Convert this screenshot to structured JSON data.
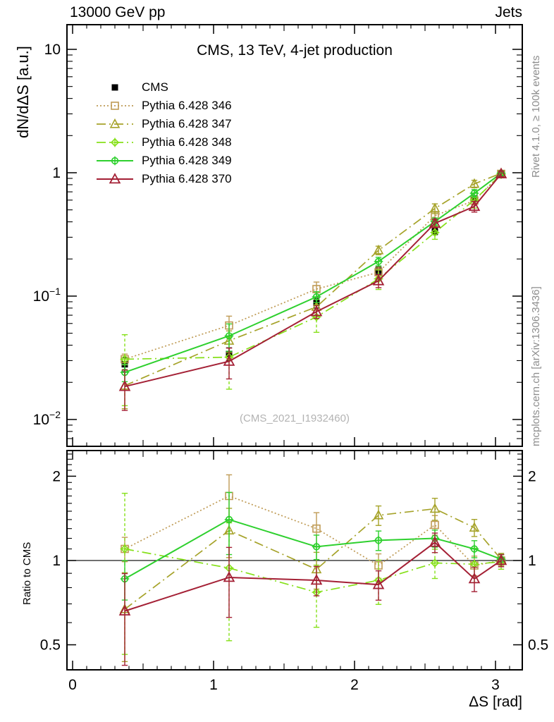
{
  "header": {
    "left": "13000 GeV pp",
    "right": "Jets"
  },
  "title": "CMS, 13 TeV, 4-jet production",
  "watermark": "(CMS_2021_I1932460)",
  "side_notes": {
    "top_right": "Rivet 4.1.0, ≥ 100k events",
    "bottom_right": "mcplots.cern.ch [arXiv:1306.3436]"
  },
  "axes": {
    "main_ylabel": "dN/dΔS [a.u.]",
    "ratio_ylabel": "Ratio to CMS",
    "xlabel": "ΔS [rad]"
  },
  "chart_data": {
    "type": "line",
    "title": "CMS, 13 TeV, 4-jet production",
    "xlabel": "ΔS [rad]",
    "ylabel": "dN/dΔS [a.u.]",
    "ratio_label": "Ratio to CMS",
    "x": [
      0.37,
      1.11,
      1.73,
      2.17,
      2.57,
      2.85,
      3.04
    ],
    "xlim": [
      -0.04,
      3.19
    ],
    "main_ylim": [
      0.00606,
      15.85
    ],
    "ratio_ylim": [
      0.407,
      2.47
    ],
    "log_y": true,
    "grid": false,
    "legend_position": "top-left",
    "xticks": [
      {
        "v": 0,
        "label": "0"
      },
      {
        "v": 1,
        "label": "1"
      },
      {
        "v": 2,
        "label": "2"
      },
      {
        "v": 3,
        "label": "3"
      }
    ],
    "main_yticks": [
      {
        "v": 10,
        "base": "10",
        "exp": ""
      },
      {
        "v": 1,
        "base": "1",
        "exp": ""
      },
      {
        "v": 0.1,
        "base": "10",
        "exp": "−1"
      },
      {
        "v": 0.01,
        "base": "10",
        "exp": "−2"
      }
    ],
    "ratio_yticks": [
      {
        "v": 2,
        "label": "2"
      },
      {
        "v": 1,
        "label": "1"
      },
      {
        "v": 0.5,
        "label": "0.5"
      }
    ],
    "series": [
      {
        "name": "CMS",
        "color": "#000000",
        "marker": "square-filled",
        "line": "none",
        "values": [
          0.028,
          0.034,
          0.088,
          0.162,
          0.335,
          0.62,
          0.98
        ],
        "ratio": [
          1,
          1,
          1,
          1,
          1,
          1,
          1
        ],
        "rel_err": [
          0.13,
          0.12,
          0.09,
          0.07,
          0.06,
          0.05,
          0.04
        ]
      },
      {
        "name": "Pythia 6.428 346",
        "color": "#bf9b55",
        "marker": "square-open",
        "line": "dotted",
        "values": [
          0.0308,
          0.0578,
          0.114,
          0.156,
          0.449,
          0.595,
          0.98
        ],
        "ratio": [
          1.1,
          1.7,
          1.3,
          0.96,
          1.34,
          0.96,
          1.0
        ],
        "rel_err": [
          0.1,
          0.19,
          0.14,
          0.1,
          0.08,
          0.08,
          0.05
        ]
      },
      {
        "name": "Pythia 6.428 347",
        "color": "#a6a32a",
        "marker": "triangle-open",
        "line": "dashdot",
        "values": [
          0.0188,
          0.0435,
          0.0818,
          0.235,
          0.513,
          0.812,
          0.99
        ],
        "ratio": [
          0.67,
          1.28,
          0.93,
          1.45,
          1.53,
          1.31,
          1.01
        ],
        "rel_err": [
          0.35,
          0.2,
          0.15,
          0.08,
          0.09,
          0.07,
          0.05
        ]
      },
      {
        "name": "Pythia 6.428 348",
        "color": "#86e01a",
        "marker": "diamond-cross",
        "line": "dashdot",
        "values": [
          0.0308,
          0.032,
          0.0678,
          0.138,
          0.328,
          0.601,
          0.97
        ],
        "ratio": [
          1.1,
          0.94,
          0.77,
          0.85,
          0.98,
          0.97,
          0.99
        ],
        "rel_err": [
          0.58,
          0.45,
          0.25,
          0.18,
          0.12,
          0.14,
          0.06
        ]
      },
      {
        "name": "Pythia 6.428 349",
        "color": "#2ed02e",
        "marker": "circle-cross",
        "line": "solid",
        "values": [
          0.0241,
          0.0476,
          0.0986,
          0.191,
          0.402,
          0.682,
          0.99
        ],
        "ratio": [
          0.86,
          1.4,
          1.12,
          1.18,
          1.2,
          1.1,
          1.01
        ],
        "rel_err": [
          0.16,
          0.25,
          0.1,
          0.08,
          0.07,
          0.07,
          0.04
        ]
      },
      {
        "name": "Pythia 6.428 370",
        "color": "#a42035",
        "marker": "triangle-open-big",
        "line": "solid",
        "values": [
          0.0185,
          0.0296,
          0.0748,
          0.133,
          0.389,
          0.533,
          0.98
        ],
        "ratio": [
          0.66,
          0.87,
          0.85,
          0.82,
          1.16,
          0.86,
          1.0
        ],
        "rel_err": [
          0.36,
          0.28,
          0.12,
          0.12,
          0.08,
          0.1,
          0.05
        ]
      }
    ]
  }
}
